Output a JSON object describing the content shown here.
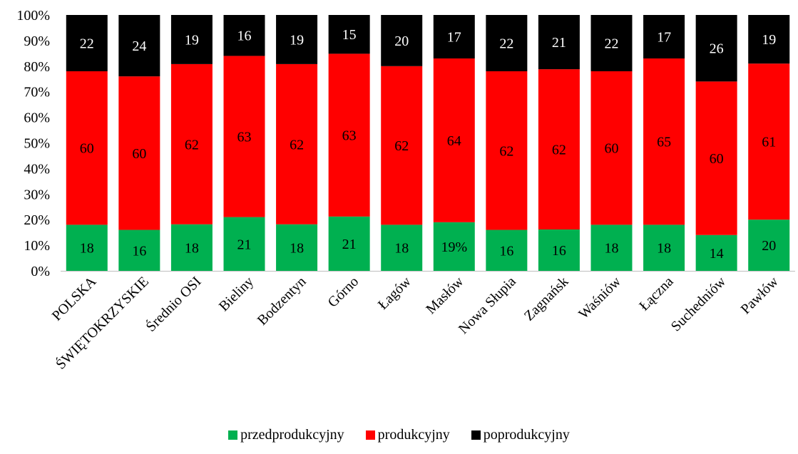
{
  "chart_data": {
    "type": "bar",
    "stacked": true,
    "percent_stacked": true,
    "categories": [
      "POLSKA",
      "ŚWIĘTOKRZYSKIE",
      "Średnio OSI",
      "Bieliny",
      "Bodzentyn",
      "Górno",
      "Łagów",
      "Masłów",
      "Nowa Słupia",
      "Zagnańsk",
      "Waśniów",
      "Łączna",
      "Suchedniów",
      "Pawłów"
    ],
    "series": [
      {
        "name": "przedprodukcyjny",
        "color": "#00b050",
        "values": [
          18,
          16,
          18,
          21,
          18,
          21,
          18,
          19,
          16,
          16,
          18,
          18,
          14,
          20
        ],
        "labels": [
          "18",
          "16",
          "18",
          "21",
          "18",
          "21",
          "18",
          "19%",
          "16",
          "16",
          "18",
          "18",
          "14",
          "20"
        ],
        "label_color": "#000000"
      },
      {
        "name": "produkcyjny",
        "color": "#ff0000",
        "values": [
          60,
          60,
          62,
          63,
          62,
          63,
          62,
          64,
          62,
          62,
          60,
          65,
          60,
          61
        ],
        "labels": [
          "60",
          "60",
          "62",
          "63",
          "62",
          "63",
          "62",
          "64",
          "62",
          "62",
          "60",
          "65",
          "60",
          "61"
        ],
        "label_color": "#000000"
      },
      {
        "name": "poprodukcyjny",
        "color": "#000000",
        "values": [
          22,
          24,
          19,
          16,
          19,
          15,
          20,
          17,
          22,
          21,
          22,
          17,
          26,
          19
        ],
        "labels": [
          "22",
          "24",
          "19",
          "16",
          "19",
          "15",
          "20",
          "17",
          "22",
          "21",
          "22",
          "17",
          "26",
          "19"
        ],
        "label_color": "#ffffff"
      }
    ],
    "yticks": [
      "0%",
      "10%",
      "20%",
      "30%",
      "40%",
      "50%",
      "60%",
      "70%",
      "80%",
      "90%",
      "100%"
    ],
    "ylim": [
      0,
      100
    ],
    "grid": false,
    "legend_position": "bottom"
  }
}
